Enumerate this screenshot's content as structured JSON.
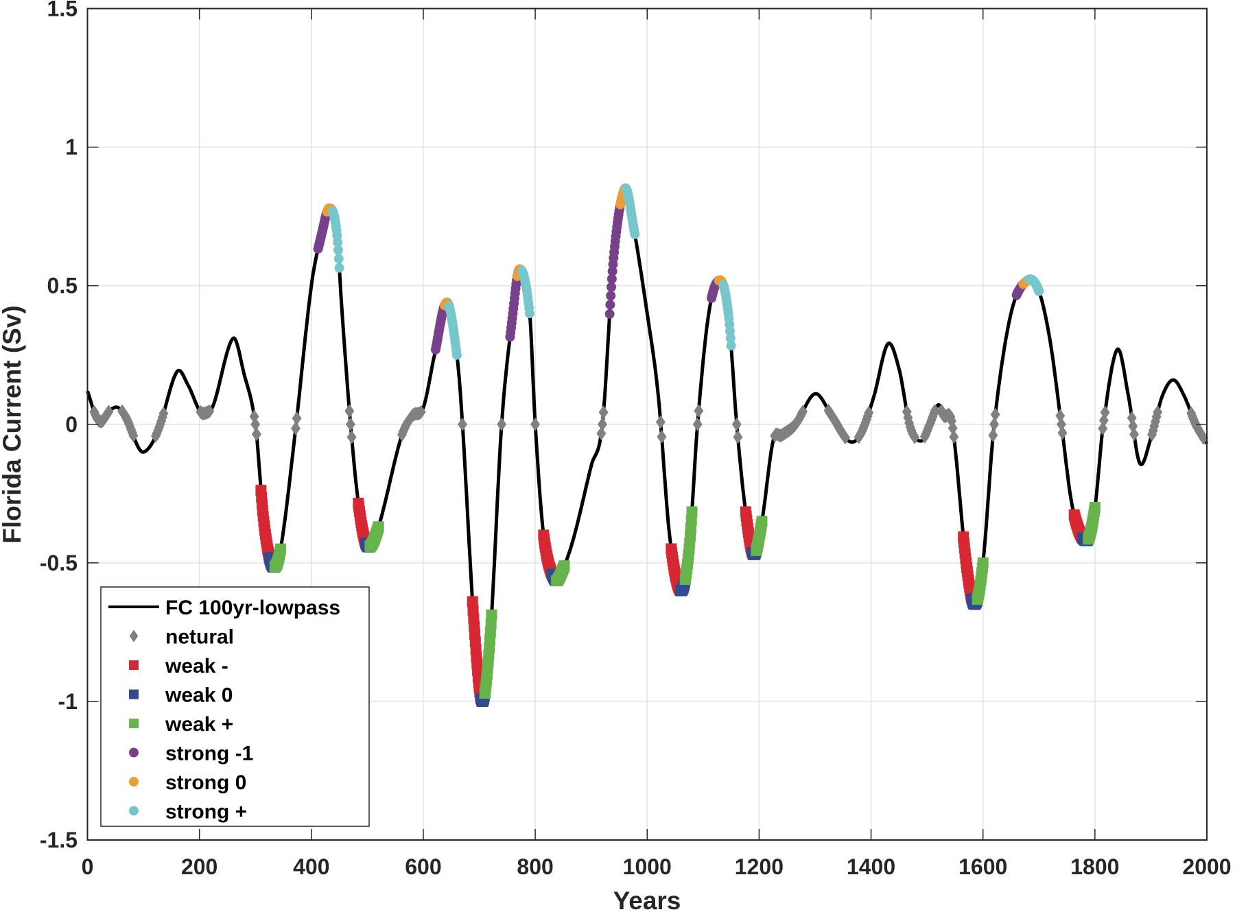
{
  "chart_data": {
    "type": "line",
    "title": "",
    "xlabel": "Years",
    "ylabel": "Florida Current (Sv)",
    "xlim": [
      0,
      2000
    ],
    "ylim": [
      -1.5,
      1.5
    ],
    "xticks": [
      0,
      200,
      400,
      600,
      800,
      1000,
      1200,
      1400,
      1600,
      1800,
      2000
    ],
    "yticks": [
      -1.5,
      -1,
      -0.5,
      0,
      0.5,
      1,
      1.5
    ],
    "xtick_labels": [
      "0",
      "200",
      "400",
      "600",
      "800",
      "1000",
      "1200",
      "1400",
      "1600",
      "1800",
      "2000"
    ],
    "ytick_labels": [
      "-1.5",
      "-1",
      "-0.5",
      "0",
      "0.5",
      "1",
      "1.5"
    ],
    "grid": true,
    "legend_position": "bottom-left",
    "colors": {
      "line": "#000000",
      "netural": "#808080",
      "weak_minus": "#d62833",
      "weak_zero": "#344a8e",
      "weak_plus": "#67b34c",
      "strong_minus": "#76418a",
      "strong_zero": "#eb9d3a",
      "strong_plus": "#77c6cc"
    },
    "legend": [
      {
        "key": "line",
        "label": "FC 100yr-lowpass",
        "marker": "line"
      },
      {
        "key": "netural",
        "label": "netural",
        "marker": "diamond"
      },
      {
        "key": "weak_minus",
        "label": "weak -",
        "marker": "square"
      },
      {
        "key": "weak_zero",
        "label": "weak 0",
        "marker": "square"
      },
      {
        "key": "weak_plus",
        "label": "weak +",
        "marker": "square"
      },
      {
        "key": "strong_minus",
        "label": "strong -1",
        "marker": "circle"
      },
      {
        "key": "strong_zero",
        "label": "strong 0",
        "marker": "circle"
      },
      {
        "key": "strong_plus",
        "label": "strong +",
        "marker": "circle"
      }
    ],
    "series": [
      {
        "name": "FC 100yr-lowpass",
        "points": [
          [
            0,
            0.12
          ],
          [
            15,
            0.03
          ],
          [
            25,
            0.01
          ],
          [
            40,
            0.05
          ],
          [
            55,
            0.06
          ],
          [
            70,
            0.02
          ],
          [
            90,
            -0.08
          ],
          [
            100,
            -0.1
          ],
          [
            115,
            -0.07
          ],
          [
            130,
            0.0
          ],
          [
            160,
            0.19
          ],
          [
            180,
            0.14
          ],
          [
            200,
            0.05
          ],
          [
            210,
            0.04
          ],
          [
            225,
            0.07
          ],
          [
            260,
            0.31
          ],
          [
            280,
            0.18
          ],
          [
            300,
            0.0
          ],
          [
            315,
            -0.35
          ],
          [
            330,
            -0.51
          ],
          [
            345,
            -0.45
          ],
          [
            370,
            -0.05
          ],
          [
            400,
            0.5
          ],
          [
            420,
            0.7
          ],
          [
            432,
            0.78
          ],
          [
            445,
            0.7
          ],
          [
            455,
            0.4
          ],
          [
            470,
            0.0
          ],
          [
            485,
            -0.3
          ],
          [
            500,
            -0.44
          ],
          [
            520,
            -0.37
          ],
          [
            560,
            -0.05
          ],
          [
            580,
            0.03
          ],
          [
            600,
            0.06
          ],
          [
            620,
            0.25
          ],
          [
            642,
            0.44
          ],
          [
            660,
            0.25
          ],
          [
            670,
            0.0
          ],
          [
            690,
            -0.7
          ],
          [
            705,
            -1.0
          ],
          [
            720,
            -0.75
          ],
          [
            740,
            0.0
          ],
          [
            760,
            0.4
          ],
          [
            772,
            0.56
          ],
          [
            790,
            0.4
          ],
          [
            800,
            0.0
          ],
          [
            815,
            -0.4
          ],
          [
            835,
            -0.56
          ],
          [
            850,
            -0.52
          ],
          [
            870,
            -0.4
          ],
          [
            900,
            -0.15
          ],
          [
            920,
            0.0
          ],
          [
            940,
            0.6
          ],
          [
            960,
            0.85
          ],
          [
            975,
            0.72
          ],
          [
            1000,
            0.4
          ],
          [
            1020,
            0.1
          ],
          [
            1040,
            -0.4
          ],
          [
            1060,
            -0.6
          ],
          [
            1075,
            -0.45
          ],
          [
            1090,
            0.0
          ],
          [
            1110,
            0.4
          ],
          [
            1130,
            0.52
          ],
          [
            1145,
            0.4
          ],
          [
            1160,
            0.0
          ],
          [
            1175,
            -0.3
          ],
          [
            1190,
            -0.47
          ],
          [
            1205,
            -0.35
          ],
          [
            1225,
            -0.06
          ],
          [
            1240,
            -0.04
          ],
          [
            1265,
            0.0
          ],
          [
            1300,
            0.11
          ],
          [
            1330,
            0.03
          ],
          [
            1360,
            -0.06
          ],
          [
            1380,
            -0.04
          ],
          [
            1405,
            0.1
          ],
          [
            1430,
            0.29
          ],
          [
            1450,
            0.2
          ],
          [
            1470,
            -0.01
          ],
          [
            1490,
            -0.06
          ],
          [
            1505,
            0.0
          ],
          [
            1520,
            0.07
          ],
          [
            1530,
            0.03
          ],
          [
            1545,
            0.0
          ],
          [
            1570,
            -0.5
          ],
          [
            1585,
            -0.65
          ],
          [
            1600,
            -0.5
          ],
          [
            1620,
            0.0
          ],
          [
            1650,
            0.4
          ],
          [
            1680,
            0.52
          ],
          [
            1700,
            0.48
          ],
          [
            1720,
            0.3
          ],
          [
            1740,
            0.0
          ],
          [
            1760,
            -0.3
          ],
          [
            1785,
            -0.42
          ],
          [
            1800,
            -0.3
          ],
          [
            1815,
            0.0
          ],
          [
            1840,
            0.27
          ],
          [
            1860,
            0.1
          ],
          [
            1880,
            -0.14
          ],
          [
            1900,
            -0.05
          ],
          [
            1920,
            0.1
          ],
          [
            1940,
            0.16
          ],
          [
            1960,
            0.1
          ],
          [
            1980,
            0.0
          ],
          [
            2000,
            -0.07
          ]
        ]
      }
    ],
    "phase_ranges": {
      "netural_threshold_abs": 0.05,
      "weak_minus": [
        [
          310,
          325
        ],
        [
          484,
          497
        ],
        [
          688,
          703
        ],
        [
          815,
          830
        ],
        [
          1043,
          1060
        ],
        [
          1176,
          1188
        ],
        [
          1565,
          1580
        ],
        [
          1763,
          1778
        ]
      ],
      "weak_zero": [
        [
          325,
          335
        ],
        [
          497,
          505
        ],
        [
          703,
          710
        ],
        [
          830,
          838
        ],
        [
          1060,
          1068
        ],
        [
          1188,
          1195
        ],
        [
          1580,
          1590
        ],
        [
          1778,
          1788
        ]
      ],
      "weak_plus": [
        [
          335,
          345
        ],
        [
          505,
          520
        ],
        [
          710,
          722
        ],
        [
          838,
          852
        ],
        [
          1068,
          1080
        ],
        [
          1195,
          1205
        ],
        [
          1590,
          1600
        ],
        [
          1788,
          1800
        ]
      ],
      "strong_minus": [
        [
          412,
          428
        ],
        [
          622,
          638
        ],
        [
          755,
          768
        ],
        [
          933,
          952
        ],
        [
          1115,
          1128
        ],
        [
          1660,
          1672
        ]
      ],
      "strong_zero": [
        [
          428,
          438
        ],
        [
          638,
          646
        ],
        [
          768,
          776
        ],
        [
          952,
          962
        ],
        [
          1128,
          1136
        ],
        [
          1672,
          1682
        ]
      ],
      "strong_plus": [
        [
          438,
          450
        ],
        [
          646,
          660
        ],
        [
          776,
          790
        ],
        [
          962,
          978
        ],
        [
          1136,
          1150
        ],
        [
          1682,
          1700
        ]
      ]
    }
  }
}
